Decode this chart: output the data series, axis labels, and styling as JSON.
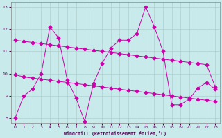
{
  "xlabel": "Windchill (Refroidissement éolien,°C)",
  "background_color": "#c8eaea",
  "grid_color": "#b0d0d0",
  "line_color": "#cc00aa",
  "xlim_min": -0.5,
  "xlim_max": 23.5,
  "ylim_min": 7.8,
  "ylim_max": 13.2,
  "xticks": [
    0,
    1,
    2,
    3,
    4,
    5,
    6,
    7,
    8,
    9,
    10,
    11,
    12,
    13,
    14,
    15,
    16,
    17,
    18,
    19,
    20,
    21,
    22,
    23
  ],
  "yticks": [
    8,
    9,
    10,
    11,
    12,
    13
  ],
  "s1_x": [
    0,
    1,
    2,
    3,
    4,
    5,
    6,
    7,
    8,
    9,
    10,
    11,
    12,
    13,
    14,
    15,
    16,
    17,
    18,
    19,
    20,
    21,
    22,
    23
  ],
  "s1_y": [
    8.0,
    9.0,
    9.3,
    10.0,
    12.1,
    11.6,
    9.7,
    8.9,
    7.85,
    9.55,
    10.45,
    11.15,
    11.5,
    11.5,
    11.8,
    13.0,
    12.1,
    11.0,
    8.6,
    8.6,
    8.85,
    9.35,
    9.6,
    9.3
  ],
  "s2_x": [
    0,
    1,
    2,
    3,
    4,
    5,
    6,
    7,
    8,
    9,
    10,
    11,
    12,
    13,
    14,
    15,
    16,
    17,
    18,
    19,
    20,
    21,
    22,
    23
  ],
  "s2_y": [
    11.5,
    11.45,
    11.4,
    11.35,
    11.3,
    11.25,
    11.2,
    11.15,
    11.1,
    11.05,
    11.0,
    10.95,
    10.9,
    10.85,
    10.8,
    10.75,
    10.7,
    10.65,
    10.6,
    10.55,
    10.5,
    10.45,
    10.4,
    9.4
  ],
  "s3_x": [
    0,
    1,
    2,
    3,
    4,
    5,
    6,
    7,
    8,
    9,
    10,
    11,
    12,
    13,
    14,
    15,
    16,
    17,
    18,
    19,
    20,
    21,
    22,
    23
  ],
  "s3_y": [
    9.95,
    9.85,
    9.8,
    9.75,
    9.7,
    9.65,
    9.6,
    9.55,
    9.5,
    9.45,
    9.4,
    9.35,
    9.3,
    9.25,
    9.2,
    9.15,
    9.1,
    9.05,
    9.0,
    8.95,
    8.9,
    8.85,
    8.8,
    8.75
  ]
}
